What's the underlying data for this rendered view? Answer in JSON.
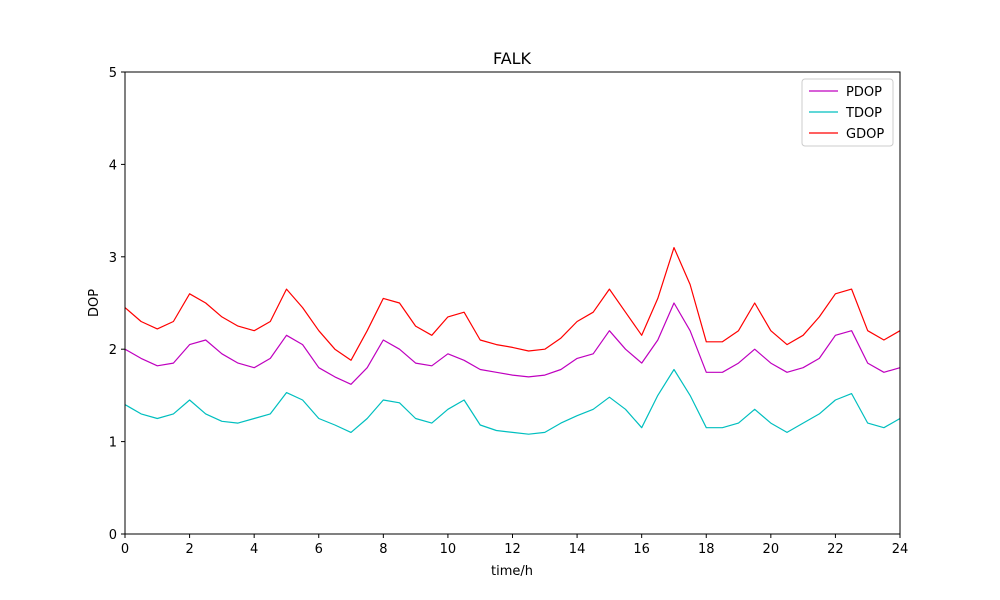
{
  "chart_data": {
    "type": "line",
    "title": "FALK",
    "xlabel": "time/h",
    "ylabel": "DOP",
    "xlim": [
      0,
      24
    ],
    "ylim": [
      0,
      5
    ],
    "xticks": [
      0,
      2,
      4,
      6,
      8,
      10,
      12,
      14,
      16,
      18,
      20,
      22,
      24
    ],
    "yticks": [
      0,
      1,
      2,
      3,
      4,
      5
    ],
    "grid": false,
    "legend_position": "top-right",
    "x": [
      0,
      0.5,
      1,
      1.5,
      2,
      2.5,
      3,
      3.5,
      4,
      4.5,
      5,
      5.5,
      6,
      6.5,
      7,
      7.5,
      8,
      8.5,
      9,
      9.5,
      10,
      10.5,
      11,
      11.5,
      12,
      12.5,
      13,
      13.5,
      14,
      14.5,
      15,
      15.5,
      16,
      16.5,
      17,
      17.5,
      18,
      18.5,
      19,
      19.5,
      20,
      20.5,
      21,
      21.5,
      22,
      22.5,
      23,
      23.5,
      24
    ],
    "series": [
      {
        "name": "PDOP",
        "color": "#bf00bf",
        "values": [
          2.0,
          1.9,
          1.82,
          1.85,
          2.05,
          2.1,
          1.95,
          1.85,
          1.8,
          1.9,
          2.15,
          2.05,
          1.8,
          1.7,
          1.62,
          1.8,
          2.1,
          2.0,
          1.85,
          1.82,
          1.95,
          1.88,
          1.78,
          1.75,
          1.72,
          1.7,
          1.72,
          1.78,
          1.9,
          1.95,
          2.2,
          2.0,
          1.85,
          2.1,
          2.5,
          2.2,
          1.75,
          1.75,
          1.85,
          2.0,
          1.85,
          1.75,
          1.8,
          1.9,
          2.15,
          2.2,
          1.85,
          1.75,
          1.8
        ]
      },
      {
        "name": "TDOP",
        "color": "#00bfbf",
        "values": [
          1.4,
          1.3,
          1.25,
          1.3,
          1.45,
          1.3,
          1.22,
          1.2,
          1.25,
          1.3,
          1.53,
          1.45,
          1.25,
          1.18,
          1.1,
          1.25,
          1.45,
          1.42,
          1.25,
          1.2,
          1.35,
          1.45,
          1.18,
          1.12,
          1.1,
          1.08,
          1.1,
          1.2,
          1.28,
          1.35,
          1.48,
          1.35,
          1.15,
          1.5,
          1.78,
          1.5,
          1.15,
          1.15,
          1.2,
          1.35,
          1.2,
          1.1,
          1.2,
          1.3,
          1.45,
          1.52,
          1.2,
          1.15,
          1.25
        ]
      },
      {
        "name": "GDOP",
        "color": "#ff0000",
        "values": [
          2.45,
          2.3,
          2.22,
          2.3,
          2.6,
          2.5,
          2.35,
          2.25,
          2.2,
          2.3,
          2.65,
          2.45,
          2.2,
          2.0,
          1.88,
          2.2,
          2.55,
          2.5,
          2.25,
          2.15,
          2.35,
          2.4,
          2.1,
          2.05,
          2.02,
          1.98,
          2.0,
          2.12,
          2.3,
          2.4,
          2.65,
          2.4,
          2.15,
          2.55,
          3.1,
          2.7,
          2.08,
          2.08,
          2.2,
          2.5,
          2.2,
          2.05,
          2.15,
          2.35,
          2.6,
          2.65,
          2.2,
          2.1,
          2.2
        ]
      }
    ]
  }
}
